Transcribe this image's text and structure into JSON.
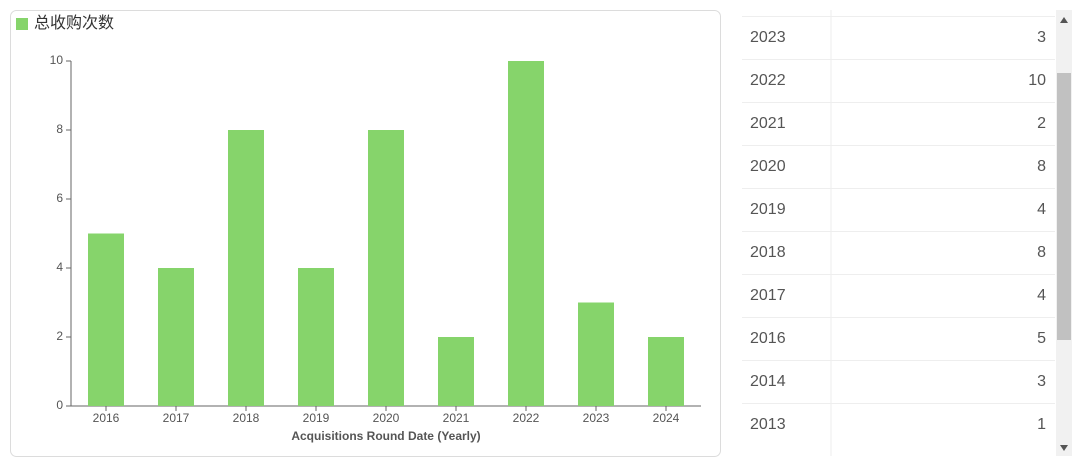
{
  "chart_data": {
    "type": "bar",
    "legend": "总收购次数",
    "color": "#86d46b",
    "x_label": "Acquisitions Round Date (Yearly)",
    "categories": [
      "2016",
      "2017",
      "2018",
      "2019",
      "2020",
      "2021",
      "2022",
      "2023",
      "2024"
    ],
    "values": [
      5,
      4,
      8,
      4,
      8,
      2,
      10,
      3,
      2
    ],
    "ylim": [
      0,
      10
    ],
    "yticks": [
      0,
      2,
      4,
      6,
      8,
      10
    ]
  },
  "table": {
    "rows": [
      [
        2023,
        3
      ],
      [
        2022,
        10
      ],
      [
        2021,
        2
      ],
      [
        2020,
        8
      ],
      [
        2019,
        4
      ],
      [
        2018,
        8
      ],
      [
        2017,
        4
      ],
      [
        2016,
        5
      ],
      [
        2014,
        3
      ],
      [
        2013,
        1
      ]
    ]
  }
}
